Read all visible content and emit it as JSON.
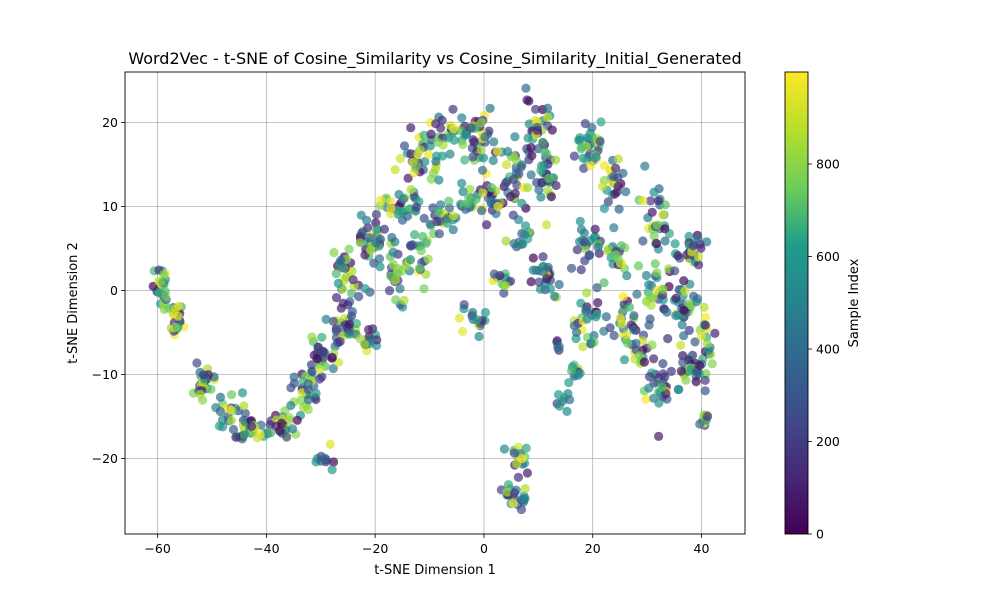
{
  "chart_data": {
    "type": "scatter",
    "title": "Word2Vec - t-SNE of Cosine_Similarity vs Cosine_Similarity_Initial_Generated",
    "xlabel": "t-SNE Dimension 1",
    "ylabel": "t-SNE Dimension 2",
    "xlim": [
      -66,
      48
    ],
    "ylim": [
      -29,
      26
    ],
    "xticks": [
      -60,
      -40,
      -20,
      0,
      20,
      40
    ],
    "yticks": [
      -20,
      -10,
      0,
      10,
      20
    ],
    "grid": true,
    "marker_alpha": 0.7,
    "colormap": "viridis",
    "colorbar": {
      "label": "Sample Index",
      "range": [
        0,
        999
      ],
      "ticks": [
        0,
        200,
        400,
        600,
        800
      ],
      "colors": [
        "#440154",
        "#482777",
        "#3f4a8a",
        "#31678e",
        "#26838f",
        "#1f9d8a",
        "#6cce5a",
        "#b6de2b",
        "#fee825"
      ]
    },
    "clusters": [
      {
        "x": -59.5,
        "y": 0.5,
        "spread": [
          1.0,
          1.6
        ],
        "count": 25
      },
      {
        "x": -56.5,
        "y": -3.5,
        "spread": [
          1.0,
          1.5
        ],
        "count": 22
      },
      {
        "x": -51.5,
        "y": -11.0,
        "spread": [
          1.0,
          1.5
        ],
        "count": 25
      },
      {
        "x": -47.0,
        "y": -14.5,
        "spread": [
          1.5,
          1.2
        ],
        "count": 22
      },
      {
        "x": -42.5,
        "y": -16.5,
        "spread": [
          2.0,
          1.0
        ],
        "count": 30
      },
      {
        "x": -36.5,
        "y": -16.0,
        "spread": [
          2.0,
          1.3
        ],
        "count": 25
      },
      {
        "x": -33.0,
        "y": -12.0,
        "spread": [
          1.8,
          1.6
        ],
        "count": 30
      },
      {
        "x": -30.0,
        "y": -19.5,
        "spread": [
          1.5,
          1.0
        ],
        "count": 10
      },
      {
        "x": -30.0,
        "y": -8.0,
        "spread": [
          1.8,
          1.6
        ],
        "count": 30
      },
      {
        "x": -26.5,
        "y": -4.0,
        "spread": [
          1.8,
          1.8
        ],
        "count": 30
      },
      {
        "x": -24.5,
        "y": 2.0,
        "spread": [
          1.8,
          2.0
        ],
        "count": 30
      },
      {
        "x": -21.0,
        "y": -6.0,
        "spread": [
          1.5,
          1.0
        ],
        "count": 15
      },
      {
        "x": -20.0,
        "y": 6.0,
        "spread": [
          2.2,
          1.8
        ],
        "count": 35
      },
      {
        "x": -16.5,
        "y": 2.0,
        "spread": [
          1.5,
          2.0
        ],
        "count": 20
      },
      {
        "x": -15.0,
        "y": 10.0,
        "spread": [
          2.2,
          1.5
        ],
        "count": 30
      },
      {
        "x": -12.0,
        "y": 4.5,
        "spread": [
          2.0,
          1.6
        ],
        "count": 25
      },
      {
        "x": -11.5,
        "y": 15.5,
        "spread": [
          2.5,
          1.8
        ],
        "count": 35
      },
      {
        "x": -7.5,
        "y": 8.0,
        "spread": [
          2.0,
          1.8
        ],
        "count": 25
      },
      {
        "x": -6.0,
        "y": 19.0,
        "spread": [
          2.5,
          1.5
        ],
        "count": 30
      },
      {
        "x": -3.0,
        "y": 10.5,
        "spread": [
          1.8,
          1.5
        ],
        "count": 20
      },
      {
        "x": -1.5,
        "y": 18.0,
        "spread": [
          2.0,
          2.5
        ],
        "count": 35
      },
      {
        "x": 1.5,
        "y": 10.5,
        "spread": [
          1.8,
          2.0
        ],
        "count": 25
      },
      {
        "x": -2.5,
        "y": -3.5,
        "spread": [
          1.5,
          1.0
        ],
        "count": 15
      },
      {
        "x": 3.5,
        "y": 1.0,
        "spread": [
          1.5,
          1.2
        ],
        "count": 12
      },
      {
        "x": 5.5,
        "y": 14.0,
        "spread": [
          2.0,
          2.5
        ],
        "count": 30
      },
      {
        "x": 7.0,
        "y": 6.0,
        "spread": [
          1.5,
          1.5
        ],
        "count": 15
      },
      {
        "x": 10.5,
        "y": 19.0,
        "spread": [
          2.0,
          2.5
        ],
        "count": 35
      },
      {
        "x": 11.5,
        "y": 13.0,
        "spread": [
          1.5,
          2.0
        ],
        "count": 25
      },
      {
        "x": 11.5,
        "y": 2.0,
        "spread": [
          1.8,
          1.5
        ],
        "count": 25
      },
      {
        "x": 13.5,
        "y": -6.5,
        "spread": [
          0.6,
          0.8
        ],
        "count": 5
      },
      {
        "x": 14.5,
        "y": -13.5,
        "spread": [
          0.8,
          1.2
        ],
        "count": 8
      },
      {
        "x": 17.0,
        "y": -9.5,
        "spread": [
          0.9,
          1.0
        ],
        "count": 10
      },
      {
        "x": 6.5,
        "y": -19.5,
        "spread": [
          1.2,
          1.2
        ],
        "count": 15
      },
      {
        "x": 6.0,
        "y": -24.5,
        "spread": [
          1.5,
          1.0
        ],
        "count": 22
      },
      {
        "x": 19.0,
        "y": 17.0,
        "spread": [
          2.0,
          2.0
        ],
        "count": 35
      },
      {
        "x": 19.0,
        "y": 5.0,
        "spread": [
          1.8,
          2.0
        ],
        "count": 25
      },
      {
        "x": 19.5,
        "y": -3.5,
        "spread": [
          2.0,
          2.0
        ],
        "count": 30
      },
      {
        "x": 23.5,
        "y": 12.5,
        "spread": [
          1.5,
          2.0
        ],
        "count": 25
      },
      {
        "x": 24.5,
        "y": 4.0,
        "spread": [
          1.5,
          1.5
        ],
        "count": 20
      },
      {
        "x": 26.0,
        "y": -3.5,
        "spread": [
          2.0,
          1.8
        ],
        "count": 25
      },
      {
        "x": 28.5,
        "y": -7.5,
        "spread": [
          1.5,
          1.2
        ],
        "count": 15
      },
      {
        "x": 31.5,
        "y": 8.5,
        "spread": [
          1.5,
          2.5
        ],
        "count": 30
      },
      {
        "x": 31.5,
        "y": 0.5,
        "spread": [
          1.8,
          2.0
        ],
        "count": 30
      },
      {
        "x": 32.5,
        "y": -11.0,
        "spread": [
          2.0,
          2.0
        ],
        "count": 30
      },
      {
        "x": 37.5,
        "y": 5.0,
        "spread": [
          2.0,
          1.5
        ],
        "count": 30
      },
      {
        "x": 37.0,
        "y": -2.0,
        "spread": [
          2.0,
          2.5
        ],
        "count": 35
      },
      {
        "x": 38.0,
        "y": -9.5,
        "spread": [
          2.0,
          1.8
        ],
        "count": 30
      },
      {
        "x": 41.0,
        "y": -6.5,
        "spread": [
          1.0,
          1.8
        ],
        "count": 15
      },
      {
        "x": 40.5,
        "y": -15.5,
        "spread": [
          0.8,
          0.6
        ],
        "count": 10
      }
    ]
  }
}
